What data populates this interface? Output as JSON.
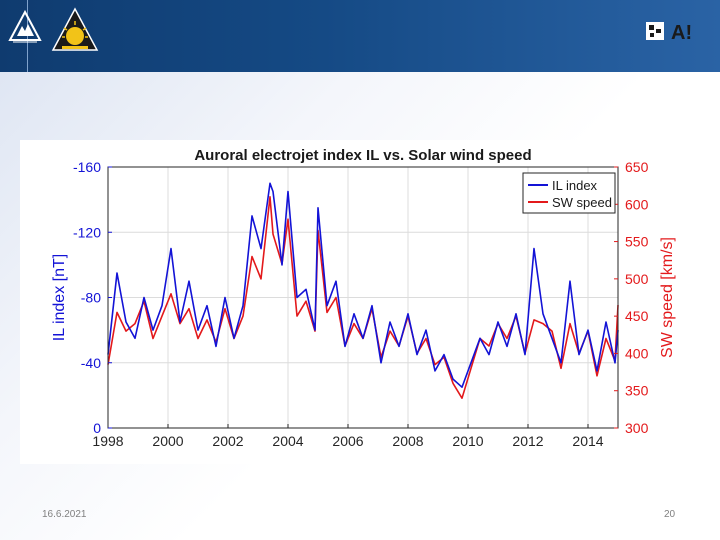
{
  "slide": {
    "date": "16.6.2021",
    "page_number": "20",
    "logos": {
      "left": "triangle-mountain-logo",
      "middle": "sun-emblem-logo",
      "right_mark": "qr-style-mark",
      "right_text": "A!"
    }
  },
  "colors": {
    "header": "#154a85",
    "il_series": "#1313d6",
    "sw_series": "#e3191b",
    "accent_yellow": "#f2c318"
  },
  "chart_data": {
    "type": "line",
    "title": "Auroral electrojet index IL vs. Solar wind speed",
    "xlabel": "",
    "x_ticks": [
      "1998",
      "2000",
      "2002",
      "2004",
      "2006",
      "2008",
      "2010",
      "2012",
      "2014"
    ],
    "x_tick_values": [
      1998,
      2000,
      2002,
      2004,
      2006,
      2008,
      2010,
      2012,
      2014
    ],
    "xlim": [
      1998,
      2015
    ],
    "left_axis": {
      "label": "IL index [nT]",
      "ticks": [
        "-160",
        "-120",
        "-80",
        "-40",
        "0"
      ],
      "tick_values": [
        -160,
        -120,
        -80,
        -40,
        0
      ],
      "ylim": [
        0,
        -160
      ],
      "reversed": true
    },
    "right_axis": {
      "label": "SW speed [km/s]",
      "ticks": [
        "650",
        "600",
        "550",
        "500",
        "450",
        "400",
        "350",
        "300"
      ],
      "tick_values": [
        650,
        600,
        550,
        500,
        450,
        400,
        350,
        300
      ],
      "ylim": [
        300,
        650
      ]
    },
    "grid": true,
    "legend_position": "top-right",
    "series": [
      {
        "name": "IL index",
        "axis": "left",
        "x": [
          1998.0,
          1998.3,
          1998.6,
          1998.9,
          1999.2,
          1999.5,
          1999.8,
          2000.1,
          2000.4,
          2000.7,
          2001.0,
          2001.3,
          2001.6,
          2001.9,
          2002.2,
          2002.5,
          2002.8,
          2003.1,
          2003.4,
          2003.5,
          2003.8,
          2004.0,
          2004.3,
          2004.6,
          2004.9,
          2005.0,
          2005.3,
          2005.6,
          2005.9,
          2006.2,
          2006.5,
          2006.8,
          2007.1,
          2007.4,
          2007.7,
          2008.0,
          2008.3,
          2008.6,
          2008.9,
          2009.2,
          2009.5,
          2009.8,
          2010.1,
          2010.4,
          2010.7,
          2011.0,
          2011.3,
          2011.6,
          2011.9,
          2012.2,
          2012.5,
          2012.8,
          2013.1,
          2013.4,
          2013.7,
          2014.0,
          2014.3,
          2014.6,
          2014.9,
          2015.0
        ],
        "values": [
          -45,
          -95,
          -65,
          -55,
          -80,
          -60,
          -75,
          -110,
          -65,
          -90,
          -60,
          -75,
          -50,
          -80,
          -55,
          -75,
          -130,
          -110,
          -150,
          -145,
          -100,
          -145,
          -80,
          -85,
          -60,
          -135,
          -75,
          -90,
          -50,
          -70,
          -55,
          -75,
          -40,
          -65,
          -50,
          -70,
          -45,
          -60,
          -35,
          -45,
          -30,
          -25,
          -40,
          -55,
          -45,
          -65,
          -50,
          -70,
          -45,
          -110,
          -70,
          -55,
          -40,
          -90,
          -45,
          -60,
          -35,
          -65,
          -40,
          -60
        ]
      },
      {
        "name": "SW speed",
        "axis": "right",
        "x": [
          1998.0,
          1998.3,
          1998.6,
          1998.9,
          1999.2,
          1999.5,
          1999.8,
          2000.1,
          2000.4,
          2000.7,
          2001.0,
          2001.3,
          2001.6,
          2001.9,
          2002.2,
          2002.5,
          2002.8,
          2003.1,
          2003.4,
          2003.5,
          2003.8,
          2004.0,
          2004.3,
          2004.6,
          2004.9,
          2005.0,
          2005.3,
          2005.6,
          2005.9,
          2006.2,
          2006.5,
          2006.8,
          2007.1,
          2007.4,
          2007.7,
          2008.0,
          2008.3,
          2008.6,
          2008.9,
          2009.2,
          2009.5,
          2009.8,
          2010.1,
          2010.4,
          2010.7,
          2011.0,
          2011.3,
          2011.6,
          2011.9,
          2012.2,
          2012.5,
          2012.8,
          2013.1,
          2013.4,
          2013.7,
          2014.0,
          2014.3,
          2014.6,
          2014.9,
          2015.0
        ],
        "values": [
          385,
          455,
          430,
          440,
          470,
          420,
          450,
          480,
          440,
          460,
          420,
          445,
          415,
          460,
          420,
          450,
          530,
          500,
          610,
          560,
          520,
          580,
          450,
          470,
          430,
          565,
          455,
          475,
          410,
          440,
          420,
          460,
          395,
          430,
          410,
          450,
          400,
          420,
          385,
          395,
          360,
          340,
          380,
          420,
          410,
          440,
          420,
          450,
          400,
          445,
          440,
          430,
          380,
          440,
          400,
          430,
          370,
          420,
          390,
          465
        ]
      }
    ]
  }
}
